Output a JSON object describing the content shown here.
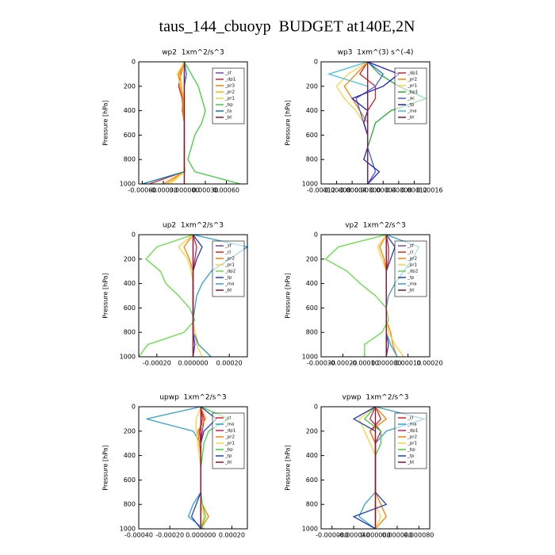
{
  "title": "taus_144_cbuoyp  BUDGET at140E,2N",
  "chart_data": [
    {
      "type": "line",
      "title": "wp2  1xm^2/s^3",
      "ylabel": "Pressure [hPa]",
      "y_inverted": true,
      "levels": [
        0,
        100,
        200,
        300,
        400,
        500,
        600,
        700,
        800,
        900,
        1000
      ],
      "xlim": [
        -0.00065,
        0.0009
      ],
      "ylim": [
        0,
        1000
      ],
      "yticks": [
        0,
        200,
        400,
        600,
        800,
        1000
      ],
      "xticks": [
        {
          "value": -0.0006,
          "label": "-0.00060"
        },
        {
          "value": -0.0003,
          "label": "-0.00030"
        },
        {
          "value": 0,
          "label": "0.000000"
        },
        {
          "value": 0.0003,
          "label": "0.00030"
        },
        {
          "value": 0.0006,
          "label": "0.00060"
        }
      ],
      "series": [
        {
          "name": "_sf",
          "color": "#8040c0",
          "values": [
            0,
            0,
            0,
            0,
            0,
            0,
            0,
            0,
            0,
            0,
            0
          ]
        },
        {
          "name": "_dp1",
          "color": "#e02020",
          "values": [
            0,
            -5e-05,
            -8e-05,
            -3e-05,
            -2e-05,
            0,
            0,
            0,
            0,
            0,
            -0.0005
          ]
        },
        {
          "name": "_pr3",
          "color": "#ff8000",
          "values": [
            0,
            -8e-05,
            -6e-05,
            -2e-05,
            -3e-05,
            0,
            0,
            0,
            0,
            0,
            -0.0003
          ]
        },
        {
          "name": "_pr2",
          "color": "#ffb000",
          "values": [
            0,
            -6e-05,
            -4e-05,
            -1e-05,
            -1e-05,
            0,
            0,
            0,
            0,
            1e-05,
            -0.00025
          ]
        },
        {
          "name": "_pr1",
          "color": "#ffd040",
          "values": [
            0,
            -0.0001,
            -5e-05,
            0,
            0,
            0,
            0,
            0,
            0,
            0,
            -0.0002
          ]
        },
        {
          "name": "_bp",
          "color": "#40d040",
          "values": [
            0,
            0.0001,
            0.0002,
            0.00025,
            0.0003,
            0.00025,
            0.00015,
            0.0001,
            5e-05,
            0.00015,
            0.0008
          ]
        },
        {
          "name": "_ta",
          "color": "#0080c0",
          "values": [
            0,
            3e-05,
            0,
            0,
            0,
            0,
            0,
            0,
            0,
            0,
            -0.0006
          ]
        },
        {
          "name": "_bt",
          "color": "#901030",
          "values": [
            0,
            0,
            0,
            0,
            0,
            0,
            0,
            0,
            0,
            0,
            0
          ]
        }
      ]
    },
    {
      "type": "line",
      "title": "wp3  1xm^(3) s^(-4)",
      "ylabel": "Pressure [hPa]",
      "y_inverted": true,
      "levels": [
        0,
        100,
        200,
        300,
        400,
        500,
        600,
        700,
        800,
        900,
        1000
      ],
      "xlim": [
        -0.00012,
        0.00016
      ],
      "ylim": [
        0,
        1000
      ],
      "yticks": [
        0,
        200,
        400,
        600,
        800,
        1000
      ],
      "xticks": [
        {
          "value": -0.00012,
          "label": "-0.00012"
        },
        {
          "value": -8e-05,
          "label": "-0.00008"
        },
        {
          "value": -4e-05,
          "label": "-0.00004"
        },
        {
          "value": 0,
          "label": "0.00000"
        },
        {
          "value": 4e-05,
          "label": "0.00004"
        },
        {
          "value": 8e-05,
          "label": "0.00008"
        },
        {
          "value": 0.00012,
          "label": "0.00012"
        },
        {
          "value": 0.00016,
          "label": "0.00016"
        }
      ],
      "series": [
        {
          "name": "_dp1",
          "color": "#e02020",
          "values": [
            0,
            -2e-05,
            2e-05,
            2e-05,
            0,
            0,
            0,
            0,
            0,
            0,
            0
          ]
        },
        {
          "name": "_pr2",
          "color": "#ff8000",
          "values": [
            0,
            -3e-05,
            -6e-05,
            -4e-05,
            -2e-05,
            0,
            0,
            0,
            0,
            0,
            0
          ]
        },
        {
          "name": "_pr1",
          "color": "#ffd040",
          "values": [
            0,
            -5e-05,
            -8e-05,
            -6e-05,
            -3e-05,
            -1e-05,
            0,
            0,
            0,
            0,
            0
          ]
        },
        {
          "name": "_bp1",
          "color": "#20b030",
          "values": [
            0,
            3e-05,
            8e-05,
            0.00015,
            6e-05,
            2e-05,
            1e-05,
            0,
            0,
            0,
            0
          ]
        },
        {
          "name": "_ac",
          "color": "#4060e0",
          "values": [
            0,
            4e-05,
            2e-05,
            -3e-05,
            -2e-05,
            -1e-05,
            0,
            0,
            1e-05,
            2e-05,
            0
          ]
        },
        {
          "name": "_tp",
          "color": "#2020c0",
          "values": [
            0,
            8e-05,
            4e-05,
            -4e-05,
            0,
            -1e-05,
            0,
            0,
            -1e-05,
            3e-05,
            0
          ]
        },
        {
          "name": "_ma",
          "color": "#40c0e0",
          "values": [
            0,
            -0.0001,
            0,
            0,
            0,
            0,
            0,
            0,
            0,
            0,
            0
          ]
        },
        {
          "name": "_bt",
          "color": "#901030",
          "values": [
            0,
            0,
            0,
            0,
            0,
            0,
            0,
            0,
            0,
            0,
            0
          ]
        }
      ]
    },
    {
      "type": "line",
      "title": "up2  1xm^2/s^3",
      "ylabel": "Pressure [hPa]",
      "y_inverted": true,
      "levels": [
        0,
        100,
        200,
        300,
        400,
        500,
        600,
        700,
        800,
        900,
        1000
      ],
      "xlim": [
        -0.0003,
        0.0003
      ],
      "ylim": [
        0,
        1000
      ],
      "yticks": [
        0,
        200,
        400,
        600,
        800,
        1000
      ],
      "xticks": [
        {
          "value": -0.0002,
          "label": "-0.00020"
        },
        {
          "value": 0,
          "label": "0.000000"
        },
        {
          "value": 0.0002,
          "label": "0.00020"
        }
      ],
      "series": [
        {
          "name": "_sf",
          "color": "#8040c0",
          "values": [
            0,
            0,
            0,
            0,
            0,
            0,
            0,
            0,
            0,
            0,
            0
          ]
        },
        {
          "name": "_cl",
          "color": "#e02020",
          "values": [
            0,
            2e-05,
            1e-05,
            0,
            0,
            0,
            0,
            0,
            0,
            0,
            0
          ]
        },
        {
          "name": "_pr2",
          "color": "#ff8000",
          "values": [
            0,
            -5e-05,
            -2e-05,
            0,
            0,
            0,
            0,
            0,
            1e-05,
            3e-05,
            0.0001
          ]
        },
        {
          "name": "_pr1",
          "color": "#ffd040",
          "values": [
            0,
            -8e-05,
            -3e-05,
            -1e-05,
            0,
            0,
            0,
            0,
            1e-05,
            2e-05,
            5e-05
          ]
        },
        {
          "name": "_dp2",
          "color": "#60e040",
          "values": [
            0,
            -0.0002,
            -0.00026,
            -0.00018,
            -0.00015,
            -8e-05,
            -2e-05,
            1e-05,
            -5e-05,
            -0.00025,
            -0.0003
          ]
        },
        {
          "name": "_tp",
          "color": "#2040c0",
          "values": [
            0,
            5e-05,
            2e-05,
            0,
            0,
            0,
            0,
            0,
            0,
            1e-05,
            0
          ]
        },
        {
          "name": "_ma",
          "color": "#30a0d0",
          "values": [
            0,
            0.0003,
            0.0002,
            0.0001,
            5e-05,
            2e-05,
            1e-05,
            0,
            0,
            3e-05,
            0.0001
          ]
        },
        {
          "name": "_bt",
          "color": "#901030",
          "values": [
            0,
            0,
            0,
            0,
            0,
            0,
            0,
            0,
            0,
            0,
            0
          ]
        }
      ]
    },
    {
      "type": "line",
      "title": "vp2  1xm^2/s^3",
      "ylabel": "Pressure [hPa]",
      "y_inverted": true,
      "levels": [
        0,
        100,
        200,
        300,
        400,
        500,
        600,
        700,
        800,
        900,
        1000
      ],
      "xlim": [
        -0.0003,
        0.0002
      ],
      "ylim": [
        0,
        1000
      ],
      "yticks": [
        0,
        200,
        400,
        600,
        800,
        1000
      ],
      "xticks": [
        {
          "value": -0.0003,
          "label": "-0.00030"
        },
        {
          "value": -0.0002,
          "label": "-0.00020"
        },
        {
          "value": -0.0001,
          "label": "-0.00010"
        },
        {
          "value": 0,
          "label": "0.000000"
        },
        {
          "value": 0.0001,
          "label": "0.00010"
        },
        {
          "value": 0.0002,
          "label": "0.00020"
        }
      ],
      "series": [
        {
          "name": "_sf",
          "color": "#8040c0",
          "values": [
            0,
            0,
            0,
            0,
            0,
            0,
            0,
            0,
            0,
            0,
            0
          ]
        },
        {
          "name": "_cl",
          "color": "#e02020",
          "values": [
            0,
            1e-05,
            1e-05,
            0,
            0,
            0,
            0,
            0,
            0,
            0,
            0
          ]
        },
        {
          "name": "_pr2",
          "color": "#ff8000",
          "values": [
            0,
            -3e-05,
            -1e-05,
            0,
            0,
            0,
            0,
            0,
            2e-05,
            3e-05,
            5e-05
          ]
        },
        {
          "name": "_pr1",
          "color": "#ffd040",
          "values": [
            0,
            -4e-05,
            -2e-05,
            0,
            0,
            0,
            0,
            0,
            1e-05,
            4e-05,
            8e-05
          ]
        },
        {
          "name": "_dp2",
          "color": "#60e040",
          "values": [
            0,
            -0.00022,
            -0.00028,
            -0.00018,
            -0.00012,
            -5e-05,
            0,
            1e-05,
            -2e-05,
            -0.0001,
            -0.0001
          ]
        },
        {
          "name": "_tp",
          "color": "#2040c0",
          "values": [
            0,
            4e-05,
            2e-05,
            0,
            0,
            0,
            0,
            0,
            0,
            1e-05,
            0
          ]
        },
        {
          "name": "_ma",
          "color": "#30a0d0",
          "values": [
            0,
            0.00015,
            0.00012,
            8e-05,
            4e-05,
            1e-05,
            0,
            0,
            0,
            2e-05,
            5e-05
          ]
        },
        {
          "name": "_bt",
          "color": "#901030",
          "values": [
            0,
            0,
            0,
            0,
            0,
            0,
            0,
            0,
            0,
            0,
            0
          ]
        }
      ]
    },
    {
      "type": "line",
      "title": "upwp  1xm^2/s^3",
      "ylabel": "Pressure [hPa]",
      "y_inverted": true,
      "levels": [
        0,
        100,
        200,
        300,
        400,
        500,
        600,
        700,
        800,
        900,
        1000
      ],
      "xlim": [
        -0.0004,
        0.0003
      ],
      "ylim": [
        0,
        1000
      ],
      "yticks": [
        0,
        200,
        400,
        600,
        800,
        1000
      ],
      "xticks": [
        {
          "value": -0.0004,
          "label": "-0.00040"
        },
        {
          "value": -0.0002,
          "label": "-0.00020"
        },
        {
          "value": 0,
          "label": "0.000000"
        },
        {
          "value": 0.0002,
          "label": "0.00020"
        }
      ],
      "series": [
        {
          "name": "_cl",
          "color": "#e02020",
          "values": [
            0,
            1e-05,
            -1e-05,
            0,
            0,
            0,
            0,
            0,
            0,
            0,
            0
          ]
        },
        {
          "name": "_ma",
          "color": "#30a0d0",
          "values": [
            0,
            -0.00035,
            -5e-05,
            0,
            0,
            0,
            0,
            0,
            -5e-05,
            -8e-05,
            2e-05
          ]
        },
        {
          "name": "_dp1",
          "color": "#c02060",
          "values": [
            0,
            2e-05,
            1e-05,
            0,
            0,
            0,
            0,
            0,
            0,
            0,
            0
          ]
        },
        {
          "name": "_pr2",
          "color": "#ff8000",
          "values": [
            0,
            3e-05,
            -2e-05,
            -1e-05,
            0,
            0,
            0,
            0,
            1e-05,
            5e-05,
            0
          ]
        },
        {
          "name": "_pr1",
          "color": "#ffd040",
          "values": [
            0,
            -3e-05,
            -3e-05,
            -2e-05,
            -1e-05,
            0,
            0,
            0,
            0,
            2e-05,
            0
          ]
        },
        {
          "name": "_bp",
          "color": "#40d040",
          "values": [
            0,
            0.00018,
            5e-05,
            2e-05,
            1e-05,
            0,
            0,
            0,
            1e-05,
            3e-05,
            0
          ]
        },
        {
          "name": "_tp",
          "color": "#2040c0",
          "values": [
            0,
            0.0001,
            2e-05,
            0,
            0,
            0,
            0,
            0,
            -3e-05,
            -6e-05,
            0
          ]
        },
        {
          "name": "_bt",
          "color": "#901030",
          "values": [
            0,
            0,
            0,
            0,
            0,
            0,
            0,
            0,
            0,
            0,
            0
          ]
        }
      ]
    },
    {
      "type": "line",
      "title": "vpwp  1xm^2/s^3",
      "ylabel": "Pressure [hPa]",
      "y_inverted": true,
      "levels": [
        0,
        100,
        200,
        300,
        400,
        500,
        600,
        700,
        800,
        900,
        1000
      ],
      "xlim": [
        -0.0001,
        0.0001
      ],
      "ylim": [
        0,
        1000
      ],
      "yticks": [
        0,
        200,
        400,
        600,
        800,
        1000
      ],
      "xticks": [
        {
          "value": -8e-05,
          "label": "-0.000080"
        },
        {
          "value": -4e-05,
          "label": "-0.000040"
        },
        {
          "value": 0,
          "label": "0.000000"
        },
        {
          "value": 4e-05,
          "label": "0.000040"
        },
        {
          "value": 8e-05,
          "label": "0.000080"
        }
      ],
      "series": [
        {
          "name": "_cl",
          "color": "#e02020",
          "values": [
            0,
            1e-05,
            -1e-05,
            0,
            0,
            0,
            0,
            0,
            0,
            0,
            0
          ]
        },
        {
          "name": "_ma",
          "color": "#30a0d0",
          "values": [
            0,
            9e-05,
            2e-05,
            0,
            0,
            0,
            0,
            0,
            -2e-05,
            -3e-05,
            0
          ]
        },
        {
          "name": "_dp1",
          "color": "#c02060",
          "values": [
            0,
            -1e-05,
            1e-05,
            0,
            0,
            0,
            0,
            0,
            0,
            0,
            0
          ]
        },
        {
          "name": "_pr2",
          "color": "#ff8000",
          "values": [
            0,
            2e-05,
            -1e-05,
            0,
            0,
            0,
            0,
            0,
            1e-05,
            2e-05,
            0
          ]
        },
        {
          "name": "_pr1",
          "color": "#ffd040",
          "values": [
            0,
            -3e-05,
            -2e-05,
            -1e-05,
            0,
            0,
            0,
            0,
            0,
            1e-05,
            0
          ]
        },
        {
          "name": "_bp",
          "color": "#40d040",
          "values": [
            0,
            -2e-05,
            1e-05,
            1e-05,
            0,
            0,
            0,
            0,
            0,
            0,
            0
          ]
        },
        {
          "name": "_tp",
          "color": "#2040c0",
          "values": [
            0,
            -4e-05,
            0,
            0,
            0,
            0,
            0,
            0,
            2e-05,
            -4e-05,
            0
          ]
        },
        {
          "name": "_bt",
          "color": "#901030",
          "values": [
            0,
            0,
            0,
            0,
            0,
            0,
            0,
            0,
            0,
            0,
            0
          ]
        }
      ]
    }
  ]
}
